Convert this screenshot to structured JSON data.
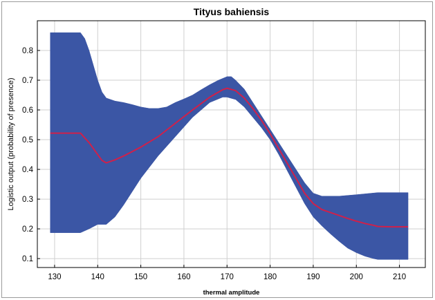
{
  "chart_data": {
    "type": "area",
    "title": "Tityus  bahiensis",
    "xlabel": "thermal amplitude",
    "ylabel": "Logistic output (probability of presence)",
    "xlim": [
      126,
      216
    ],
    "ylim": [
      0.07,
      0.9
    ],
    "x_ticks": [
      130,
      140,
      150,
      160,
      170,
      180,
      190,
      200,
      210
    ],
    "y_ticks": [
      0.1,
      0.2,
      0.3,
      0.4,
      0.5,
      0.6,
      0.7,
      0.8
    ],
    "grid": true,
    "band_color": "#3b56a5",
    "line_color": "#d0204a",
    "series": [
      {
        "role": "mean",
        "x": [
          129,
          136,
          138,
          141,
          142,
          144,
          146,
          150,
          154,
          158,
          162,
          166,
          169,
          170,
          172,
          174,
          176,
          178,
          180,
          182,
          184,
          186,
          188,
          190,
          192,
          194,
          196,
          198,
          200,
          202,
          204,
          205,
          208,
          212
        ],
        "y": [
          0.522,
          0.522,
          0.49,
          0.43,
          0.422,
          0.432,
          0.445,
          0.475,
          0.51,
          0.555,
          0.6,
          0.643,
          0.668,
          0.673,
          0.665,
          0.64,
          0.605,
          0.565,
          0.52,
          0.47,
          0.42,
          0.37,
          0.32,
          0.285,
          0.265,
          0.255,
          0.245,
          0.235,
          0.226,
          0.218,
          0.212,
          0.208,
          0.207,
          0.207
        ]
      },
      {
        "role": "upper",
        "x": [
          129,
          136,
          137,
          138,
          140,
          141,
          142,
          144,
          146,
          148,
          150,
          152,
          154,
          156,
          158,
          160,
          162,
          164,
          166,
          168,
          170,
          171,
          172,
          174,
          176,
          178,
          180,
          182,
          184,
          186,
          188,
          190,
          192,
          196,
          200,
          205,
          212
        ],
        "y": [
          0.86,
          0.86,
          0.84,
          0.8,
          0.7,
          0.66,
          0.64,
          0.63,
          0.625,
          0.618,
          0.61,
          0.605,
          0.605,
          0.61,
          0.625,
          0.637,
          0.65,
          0.668,
          0.685,
          0.7,
          0.712,
          0.712,
          0.7,
          0.67,
          0.625,
          0.58,
          0.535,
          0.49,
          0.445,
          0.4,
          0.355,
          0.32,
          0.31,
          0.31,
          0.315,
          0.322,
          0.322
        ]
      },
      {
        "role": "lower",
        "x": [
          129,
          136,
          138,
          140,
          142,
          144,
          146,
          148,
          150,
          154,
          158,
          162,
          166,
          169,
          170,
          172,
          174,
          176,
          178,
          180,
          182,
          184,
          186,
          188,
          190,
          192,
          194,
          196,
          198,
          200,
          202,
          204,
          205,
          212
        ],
        "y": [
          0.187,
          0.187,
          0.2,
          0.215,
          0.215,
          0.24,
          0.28,
          0.325,
          0.37,
          0.445,
          0.51,
          0.575,
          0.625,
          0.643,
          0.643,
          0.635,
          0.61,
          0.575,
          0.54,
          0.5,
          0.45,
          0.395,
          0.34,
          0.285,
          0.24,
          0.21,
          0.183,
          0.158,
          0.135,
          0.12,
          0.108,
          0.1,
          0.097,
          0.097
        ]
      }
    ]
  }
}
